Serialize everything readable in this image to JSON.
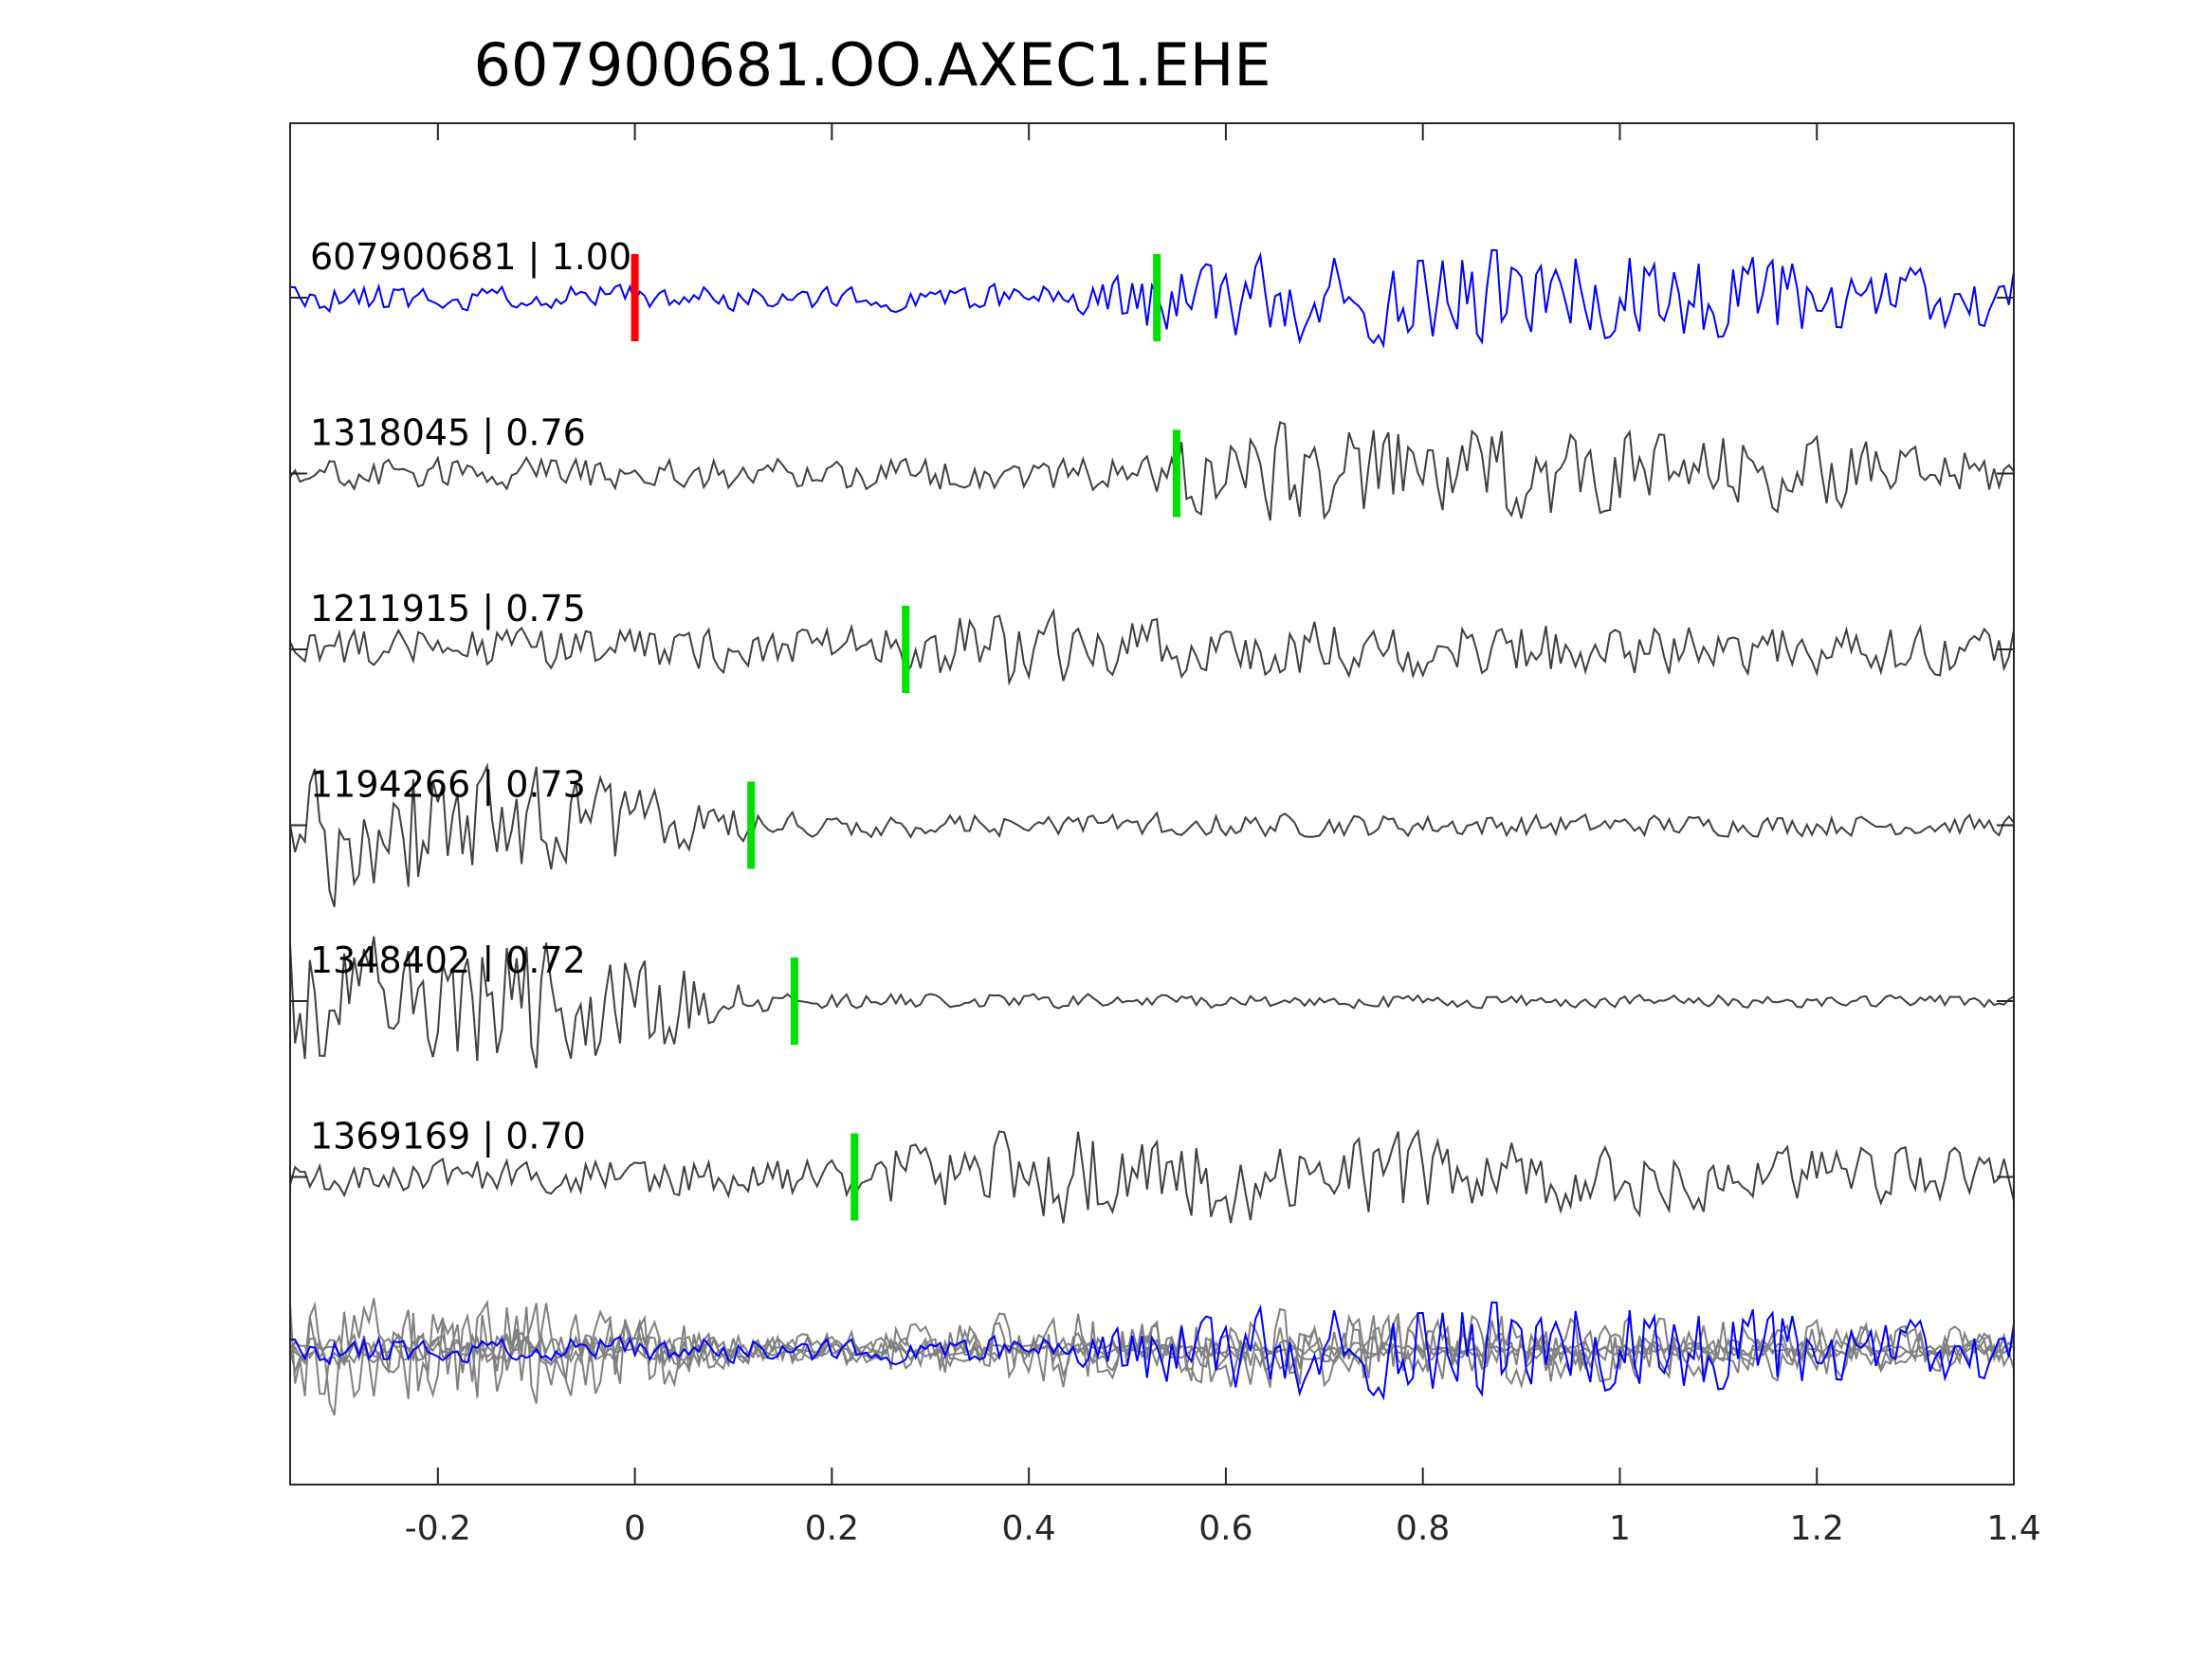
{
  "chart_data": {
    "type": "line",
    "title": "607900681.OO.AXEC1.EHE",
    "xlabel": "",
    "ylabel": "",
    "xlim": [
      -0.35,
      1.4
    ],
    "xticks": [
      -0.2,
      0,
      0.2,
      0.4,
      0.6,
      0.8,
      1,
      1.2,
      1.4
    ],
    "xtick_labels": [
      "-0.2",
      "0",
      "0.2",
      "0.4",
      "0.6",
      "0.8",
      "1",
      "1.2",
      "1.4"
    ],
    "grid": false,
    "reference_pick": {
      "time": 0,
      "color": "#ff0000"
    },
    "series": [
      {
        "name": "607900681 | 1.00",
        "color": "#0000ff",
        "pick": 0.53,
        "seed": 11,
        "envelope": [
          [
            -0.35,
            0.25
          ],
          [
            0.44,
            0.25
          ],
          [
            0.5,
            0.6
          ],
          [
            0.6,
            0.9
          ],
          [
            0.9,
            1.0
          ],
          [
            1.4,
            0.6
          ]
        ]
      },
      {
        "name": "1318045 | 0.76",
        "color": "#404040",
        "pick": 0.55,
        "seed": 23,
        "envelope": [
          [
            -0.35,
            0.3
          ],
          [
            0.5,
            0.35
          ],
          [
            0.58,
            1.0
          ],
          [
            1.0,
            0.9
          ],
          [
            1.4,
            0.45
          ]
        ]
      },
      {
        "name": "1211915 | 0.75",
        "color": "#404040",
        "pick": 0.275,
        "seed": 37,
        "envelope": [
          [
            -0.35,
            0.4
          ],
          [
            0.25,
            0.45
          ],
          [
            0.35,
            1.0
          ],
          [
            0.45,
            0.6
          ],
          [
            1.4,
            0.45
          ]
        ]
      },
      {
        "name": "1194266 | 0.73",
        "color": "#404040",
        "pick": 0.118,
        "seed": 41,
        "envelope": [
          [
            -0.35,
            1.5
          ],
          [
            -0.1,
            1.3
          ],
          [
            0.08,
            0.4
          ],
          [
            0.15,
            0.25
          ],
          [
            1.4,
            0.2
          ]
        ]
      },
      {
        "name": "1348402 | 0.72",
        "color": "#404040",
        "pick": 0.162,
        "seed": 53,
        "envelope": [
          [
            -0.35,
            1.4
          ],
          [
            0.0,
            1.2
          ],
          [
            0.12,
            0.3
          ],
          [
            0.18,
            0.15
          ],
          [
            1.4,
            0.12
          ]
        ]
      },
      {
        "name": "1369169 | 0.70",
        "color": "#404040",
        "pick": 0.223,
        "seed": 67,
        "envelope": [
          [
            -0.35,
            0.35
          ],
          [
            0.2,
            0.4
          ],
          [
            0.3,
            0.8
          ],
          [
            0.5,
            1.0
          ],
          [
            1.4,
            0.5
          ]
        ]
      }
    ],
    "stack": {
      "colors": {
        "members": "#808080",
        "reference": "#0000ff"
      }
    }
  }
}
